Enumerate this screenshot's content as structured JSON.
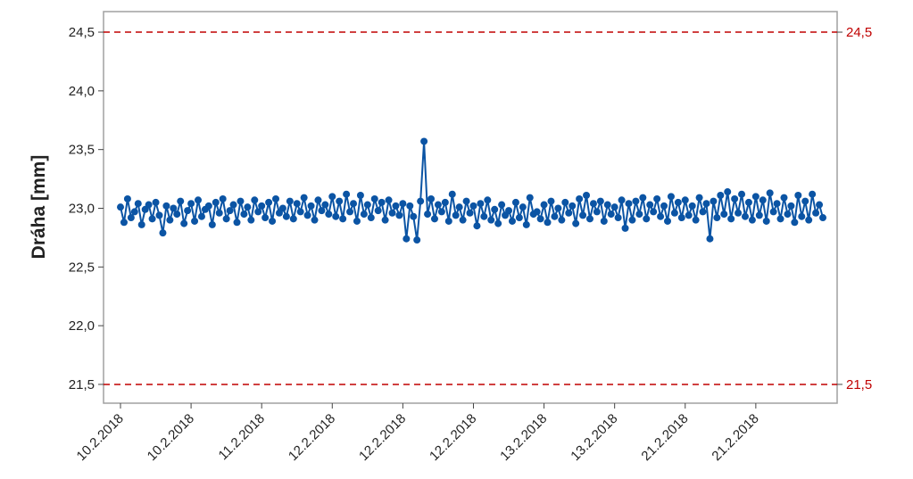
{
  "chart_data": {
    "type": "line",
    "y_label": "Dráha [mm]",
    "categories": [
      "10.2.2018",
      null,
      null,
      null,
      null,
      null,
      null,
      null,
      null,
      null,
      null,
      null,
      null,
      null,
      null,
      null,
      null,
      null,
      null,
      null,
      "10.2.2018",
      null,
      null,
      null,
      null,
      null,
      null,
      null,
      null,
      null,
      null,
      null,
      null,
      null,
      null,
      null,
      null,
      null,
      null,
      null,
      "11.2.2018",
      null,
      null,
      null,
      null,
      null,
      null,
      null,
      null,
      null,
      null,
      null,
      null,
      null,
      null,
      null,
      null,
      null,
      null,
      null,
      "12.2.2018",
      null,
      null,
      null,
      null,
      null,
      null,
      null,
      null,
      null,
      null,
      null,
      null,
      null,
      null,
      null,
      null,
      null,
      null,
      null,
      "12.2.2018",
      null,
      null,
      null,
      null,
      null,
      null,
      null,
      null,
      null,
      null,
      null,
      null,
      null,
      null,
      null,
      null,
      null,
      null,
      null,
      "12.2.2018",
      null,
      null,
      null,
      null,
      null,
      null,
      null,
      null,
      null,
      null,
      null,
      null,
      null,
      null,
      null,
      null,
      null,
      null,
      null,
      "13.2.2018",
      null,
      null,
      null,
      null,
      null,
      null,
      null,
      null,
      null,
      null,
      null,
      null,
      null,
      null,
      null,
      null,
      null,
      null,
      null,
      "13.2.2018",
      null,
      null,
      null,
      null,
      null,
      null,
      null,
      null,
      null,
      null,
      null,
      null,
      null,
      null,
      null,
      null,
      null,
      null,
      null,
      "21.2.2018",
      null,
      null,
      null,
      null,
      null,
      null,
      null,
      null,
      null,
      null,
      null,
      null,
      null,
      null,
      null,
      null,
      null,
      null,
      null,
      "21.2.2018",
      null,
      null,
      null,
      null,
      null,
      null,
      null,
      null,
      null,
      null,
      null,
      null,
      null,
      null,
      null,
      null,
      null,
      null,
      null
    ],
    "series": [
      {
        "color": "#0b54a4",
        "values": [
          23.01,
          22.88,
          23.08,
          22.92,
          22.97,
          23.04,
          22.86,
          22.99,
          23.03,
          22.91,
          23.05,
          22.94,
          22.79,
          23.02,
          22.9,
          23.0,
          22.95,
          23.06,
          22.87,
          22.98,
          23.04,
          22.89,
          23.07,
          22.93,
          22.99,
          23.02,
          22.86,
          23.05,
          22.96,
          23.08,
          22.91,
          22.98,
          23.03,
          22.88,
          23.06,
          22.95,
          23.01,
          22.9,
          23.07,
          22.97,
          23.02,
          22.92,
          23.05,
          22.89,
          23.08,
          22.96,
          23.0,
          22.93,
          23.06,
          22.91,
          23.04,
          22.97,
          23.09,
          22.94,
          23.02,
          22.9,
          23.07,
          22.98,
          23.03,
          22.95,
          23.1,
          22.93,
          23.06,
          22.91,
          23.12,
          22.97,
          23.04,
          22.89,
          23.11,
          22.95,
          23.03,
          22.92,
          23.08,
          22.98,
          23.05,
          22.9,
          23.07,
          22.96,
          23.02,
          22.94,
          23.04,
          22.74,
          23.02,
          22.93,
          22.73,
          23.06,
          23.57,
          22.95,
          23.08,
          22.91,
          23.03,
          22.97,
          23.05,
          22.89,
          23.12,
          22.94,
          23.01,
          22.9,
          23.06,
          22.96,
          23.02,
          22.85,
          23.04,
          22.93,
          23.07,
          22.9,
          22.99,
          22.87,
          23.03,
          22.94,
          22.98,
          22.89,
          23.05,
          22.92,
          23.01,
          22.86,
          23.09,
          22.95,
          22.97,
          22.91,
          23.03,
          22.88,
          23.06,
          22.93,
          23.0,
          22.9,
          23.05,
          22.96,
          23.02,
          22.87,
          23.08,
          22.94,
          23.11,
          22.91,
          23.04,
          22.97,
          23.06,
          22.89,
          23.03,
          22.95,
          23.01,
          22.92,
          23.07,
          22.83,
          23.04,
          22.9,
          23.06,
          22.95,
          23.09,
          22.91,
          23.03,
          22.97,
          23.08,
          22.93,
          23.02,
          22.89,
          23.1,
          22.96,
          23.05,
          22.92,
          23.07,
          22.94,
          23.02,
          22.9,
          23.09,
          22.97,
          23.04,
          22.74,
          23.06,
          22.92,
          23.11,
          22.95,
          23.14,
          22.91,
          23.08,
          22.96,
          23.12,
          22.93,
          23.05,
          22.9,
          23.1,
          22.94,
          23.07,
          22.89,
          23.13,
          22.97,
          23.04,
          22.91,
          23.09,
          22.95,
          23.02,
          22.88,
          23.11,
          22.93,
          23.06,
          22.9,
          23.12,
          22.96,
          23.03,
          22.92
        ]
      }
    ],
    "ylim": [
      21.34,
      24.675
    ],
    "yticks": [
      {
        "value": 21.5,
        "label": "21,5"
      },
      {
        "value": 22.0,
        "label": "22,0"
      },
      {
        "value": 22.5,
        "label": "22,5"
      },
      {
        "value": 23.0,
        "label": "23,0"
      },
      {
        "value": 23.5,
        "label": "23,5"
      },
      {
        "value": 24.0,
        "label": "24,0"
      },
      {
        "value": 24.5,
        "label": "24,5"
      }
    ],
    "ref_lines": [
      {
        "value": 24.5,
        "label": "24,5"
      },
      {
        "value": 21.5,
        "label": "21,5"
      }
    ],
    "ref_color": "#c00000"
  }
}
